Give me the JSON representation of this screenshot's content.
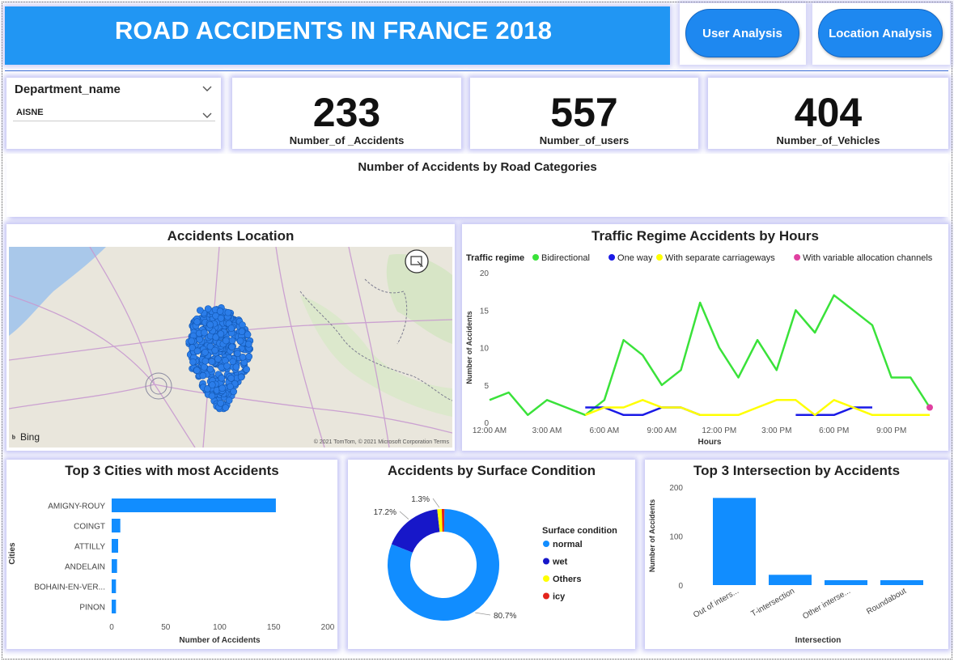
{
  "header": {
    "title": "ROAD ACCIDENTS IN FRANCE 2018"
  },
  "nav": {
    "user_analysis": "User Analysis",
    "location_analysis": "Location Analysis"
  },
  "slicer": {
    "title": "Department_name",
    "selected": "AISNE"
  },
  "kpis": [
    {
      "value": "233",
      "label": "Number_of _Accidents"
    },
    {
      "value": "557",
      "label": "Number_of_users"
    },
    {
      "value": "404",
      "label": "Number_of_Vehicles"
    }
  ],
  "road_categories": {
    "title": "Number of Accidents by Road Categories"
  },
  "map": {
    "title": "Accidents Location",
    "bing": "Bing",
    "copyright": "© 2021 TomTom, © 2021 Microsoft Corporation  Terms"
  },
  "colors": {
    "accent": "#2196f3",
    "bar": "#118dff",
    "green": "#3ae23a",
    "blue": "#1a1ae6",
    "yellow": "#ffff00",
    "pink": "#e040a0",
    "red": "#e3241b"
  },
  "chart_data": [
    {
      "type": "line",
      "title": "Traffic Regime Accidents by Hours",
      "legend_title": "Traffic regime",
      "xlabel": "Hours",
      "ylabel": "Number of Accidents",
      "ylim": [
        0,
        20
      ],
      "yticks": [
        "0",
        "5",
        "10",
        "15",
        "20"
      ],
      "xticks": [
        "12:00 AM",
        "3:00 AM",
        "6:00 AM",
        "9:00 AM",
        "12:00 PM",
        "3:00 PM",
        "6:00 PM",
        "9:00 PM"
      ],
      "x": [
        0,
        1,
        2,
        3,
        4,
        5,
        6,
        7,
        8,
        9,
        10,
        11,
        12,
        13,
        14,
        15,
        16,
        17,
        18,
        19,
        20,
        21,
        22,
        23
      ],
      "series": [
        {
          "name": "Bidirectional",
          "color": "#3ae23a",
          "values": [
            3,
            4,
            1,
            3,
            2,
            1,
            3,
            11,
            9,
            5,
            7,
            16,
            10,
            6,
            11,
            7,
            15,
            12,
            17,
            15,
            13,
            6,
            6,
            2
          ]
        },
        {
          "name": "One way",
          "color": "#1a1ae6",
          "values": [
            1,
            null,
            null,
            null,
            null,
            2,
            2,
            1,
            1,
            2,
            2,
            1,
            1,
            null,
            2,
            null,
            1,
            1,
            1,
            2,
            2,
            null,
            null,
            null
          ]
        },
        {
          "name": "With separate carriageways",
          "color": "#ffff00",
          "values": [
            null,
            null,
            null,
            null,
            null,
            1,
            2,
            2,
            3,
            2,
            2,
            1,
            1,
            1,
            2,
            3,
            3,
            1,
            3,
            2,
            1,
            1,
            1,
            1
          ]
        },
        {
          "name": "With variable allocation channels",
          "color": "#e040a0",
          "values": [
            null,
            null,
            null,
            null,
            null,
            null,
            null,
            null,
            null,
            null,
            null,
            null,
            null,
            null,
            null,
            null,
            null,
            null,
            null,
            null,
            null,
            null,
            null,
            2
          ]
        }
      ]
    },
    {
      "type": "bar",
      "orientation": "horizontal",
      "title": "Top 3 Cities with most Accidents",
      "xlabel": "Number of Accidents",
      "ylabel": "Cities",
      "xlim": [
        0,
        200
      ],
      "xticks": [
        "0",
        "50",
        "100",
        "150",
        "200"
      ],
      "categories": [
        "AMIGNY-ROUY",
        "COINGT",
        "ATTILLY",
        "ANDELAIN",
        "BOHAIN-EN-VER...",
        "PINON"
      ],
      "values": [
        152,
        8,
        6,
        5,
        4,
        4
      ]
    },
    {
      "type": "pie",
      "title": "Accidents by Surface Condition",
      "legend_title": "Surface condition",
      "categories": [
        "normal",
        "wet",
        "Others",
        "icy"
      ],
      "values": [
        80.7,
        17.2,
        1.3,
        0.8
      ],
      "colors": [
        "#118dff",
        "#1717c9",
        "#ffff00",
        "#e3241b"
      ],
      "labels": [
        "80.7%",
        "17.2%",
        "1.3%"
      ]
    },
    {
      "type": "bar",
      "title": "Top 3 Intersection by Accidents",
      "xlabel": "Intersection",
      "ylabel": "Number of Accidents",
      "ylim": [
        0,
        200
      ],
      "yticks": [
        "0",
        "100",
        "200"
      ],
      "categories": [
        "Out of inters...",
        "T-intersection",
        "Other interse...",
        "Roundabout"
      ],
      "values": [
        178,
        21,
        10,
        10
      ]
    }
  ]
}
